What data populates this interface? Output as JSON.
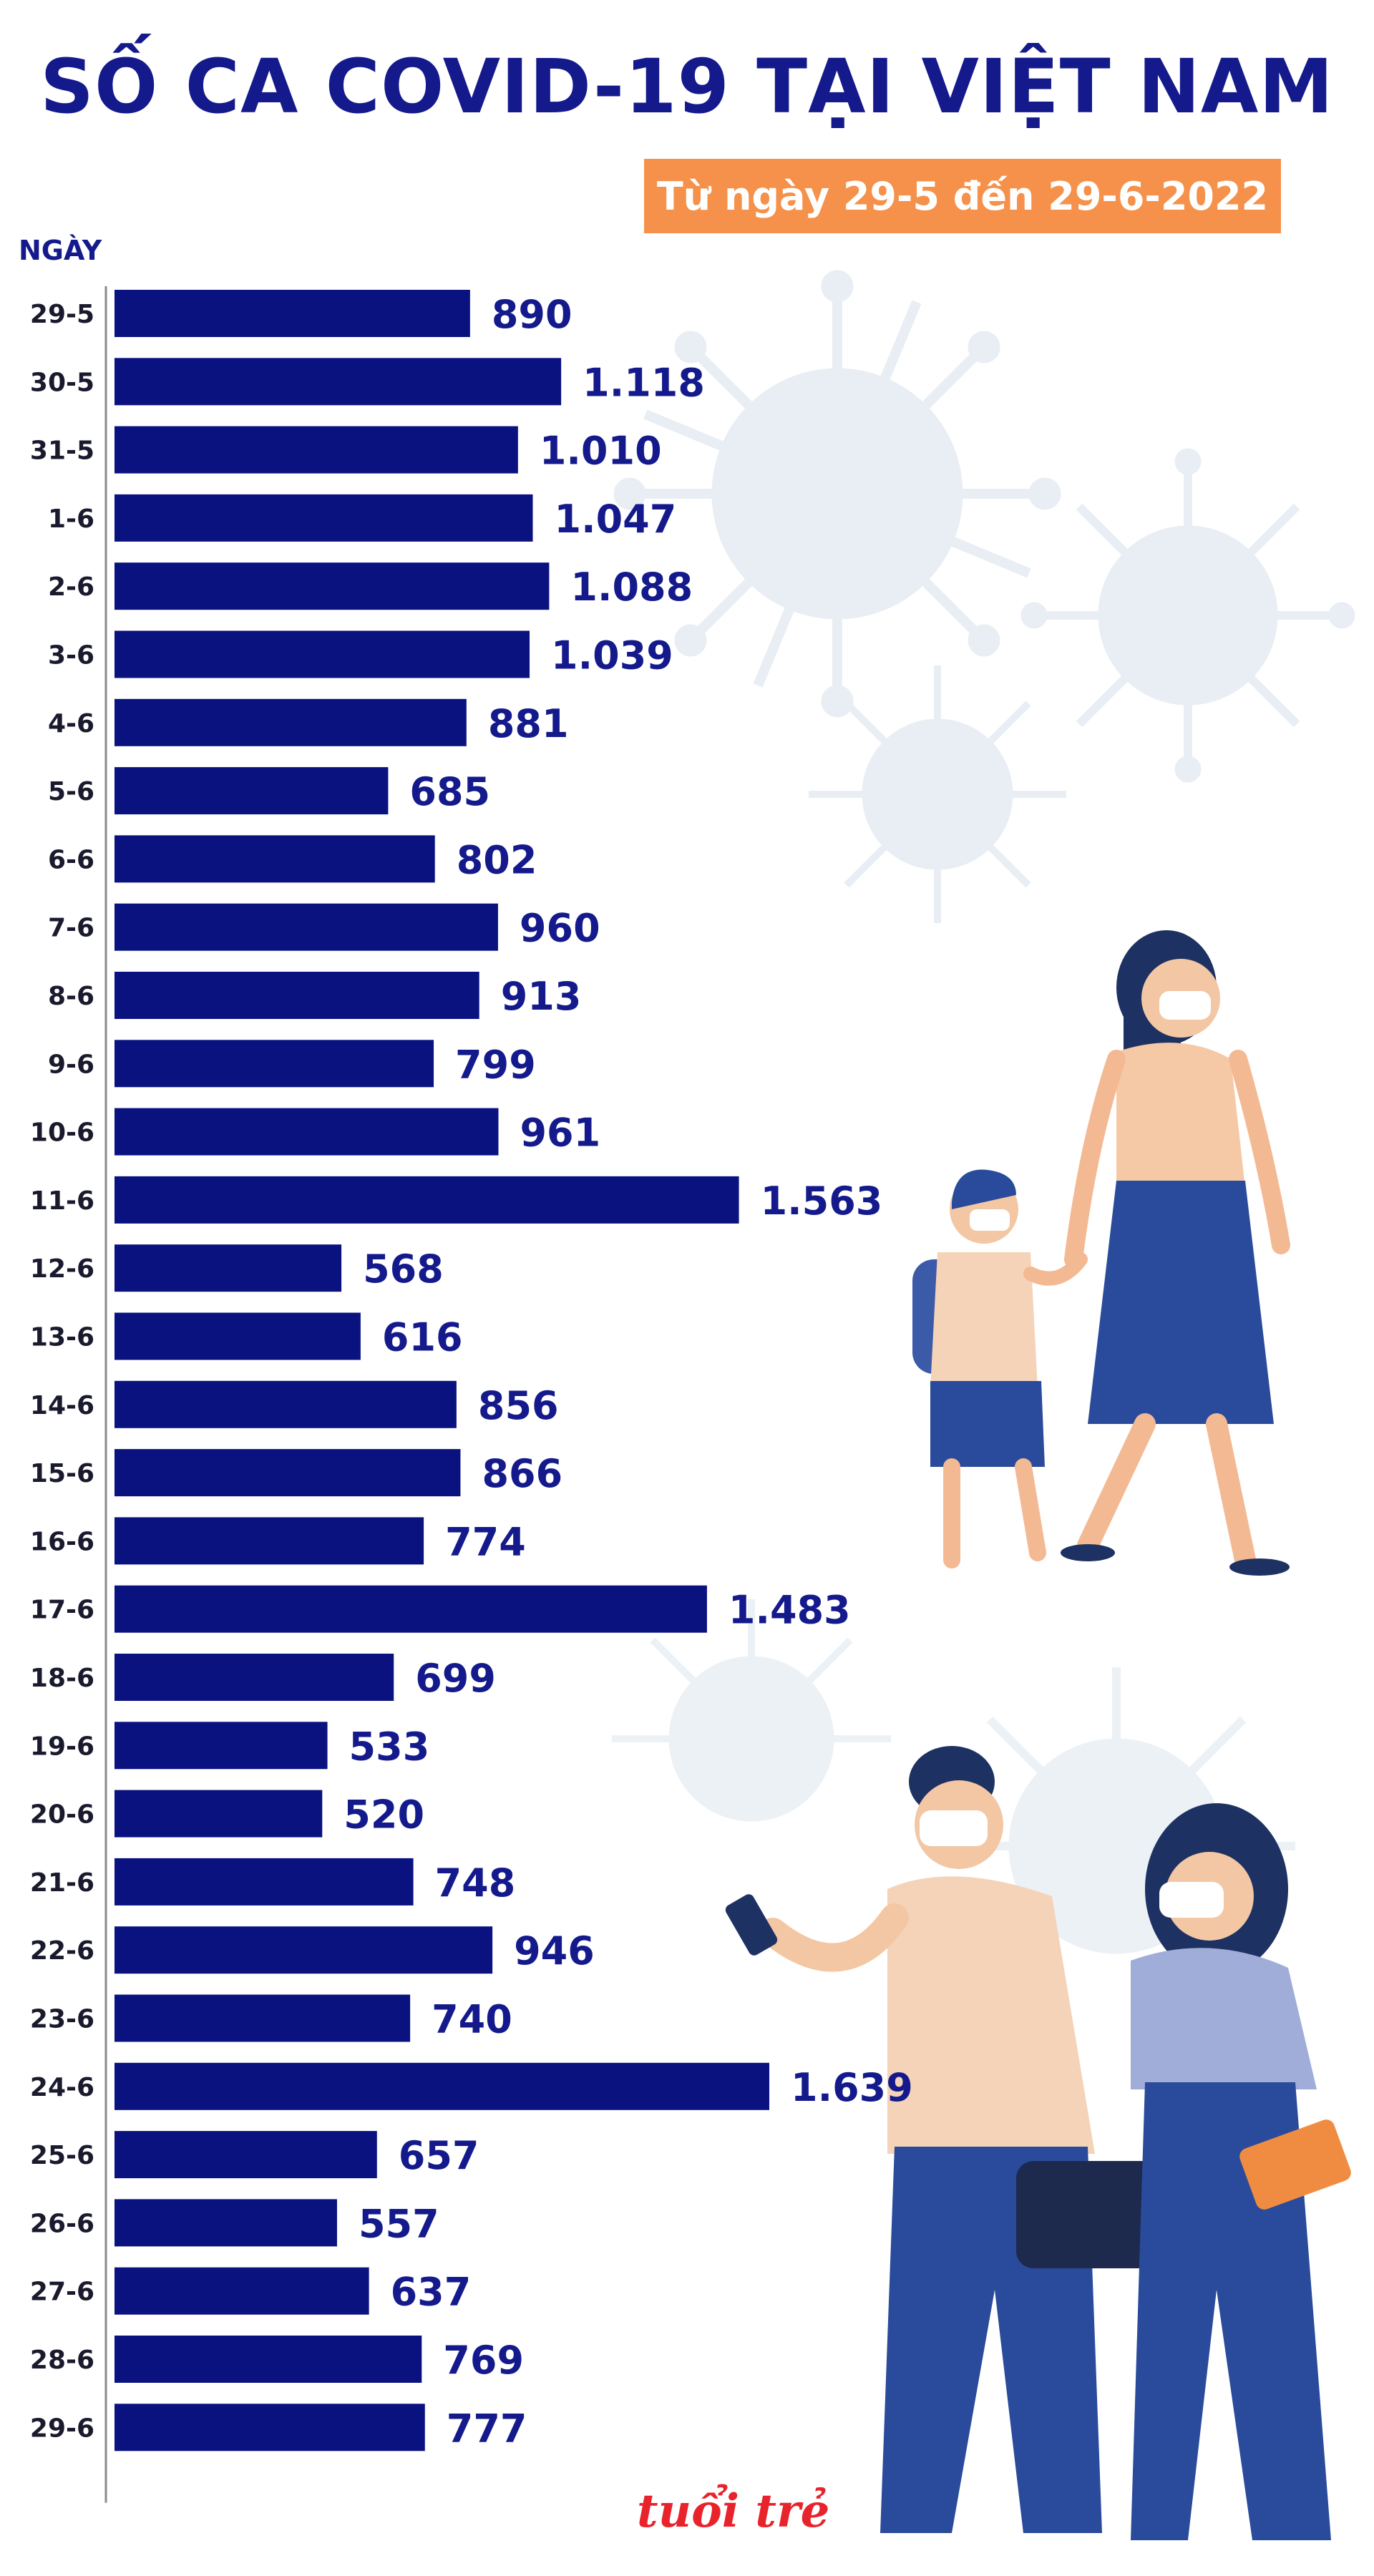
{
  "header": {
    "title": "SỐ CA COVID-19 TẠI VIỆT NAM",
    "subtitle": "Từ ngày 29-5 đến 29-6-2022",
    "yaxis_label": "NGÀY"
  },
  "brand": {
    "logo_text": "tuổi trẻ",
    "logo_color": "#e8232b"
  },
  "colors": {
    "bar": "#0a1280",
    "label": "#141a8c",
    "accent": "#f5914a"
  },
  "chart_data": {
    "type": "bar",
    "orientation": "horizontal",
    "categories": [
      "29-5",
      "30-5",
      "31-5",
      "1-6",
      "2-6",
      "3-6",
      "4-6",
      "5-6",
      "6-6",
      "7-6",
      "8-6",
      "9-6",
      "10-6",
      "11-6",
      "12-6",
      "13-6",
      "14-6",
      "15-6",
      "16-6",
      "17-6",
      "18-6",
      "19-6",
      "20-6",
      "21-6",
      "22-6",
      "23-6",
      "24-6",
      "25-6",
      "26-6",
      "27-6",
      "28-6",
      "29-6"
    ],
    "values": [
      890,
      1118,
      1010,
      1047,
      1088,
      1039,
      881,
      685,
      802,
      960,
      913,
      799,
      961,
      1563,
      568,
      616,
      856,
      866,
      774,
      1483,
      699,
      533,
      520,
      748,
      946,
      740,
      1639,
      657,
      557,
      637,
      769,
      777
    ],
    "value_labels": [
      "890",
      "1.118",
      "1.010",
      "1.047",
      "1.088",
      "1.039",
      "881",
      "685",
      "802",
      "960",
      "913",
      "799",
      "961",
      "1.563",
      "568",
      "616",
      "856",
      "866",
      "774",
      "1.483",
      "699",
      "533",
      "520",
      "748",
      "946",
      "740",
      "1.639",
      "657",
      "557",
      "637",
      "769",
      "777"
    ],
    "title": "SỐ CA COVID-19 TẠI VIỆT NAM",
    "subtitle": "Từ ngày 29-5 đến 29-6-2022",
    "xlabel": "",
    "ylabel": "NGÀY",
    "xlim": [
      0,
      1639
    ],
    "grid": false,
    "legend": "none"
  }
}
